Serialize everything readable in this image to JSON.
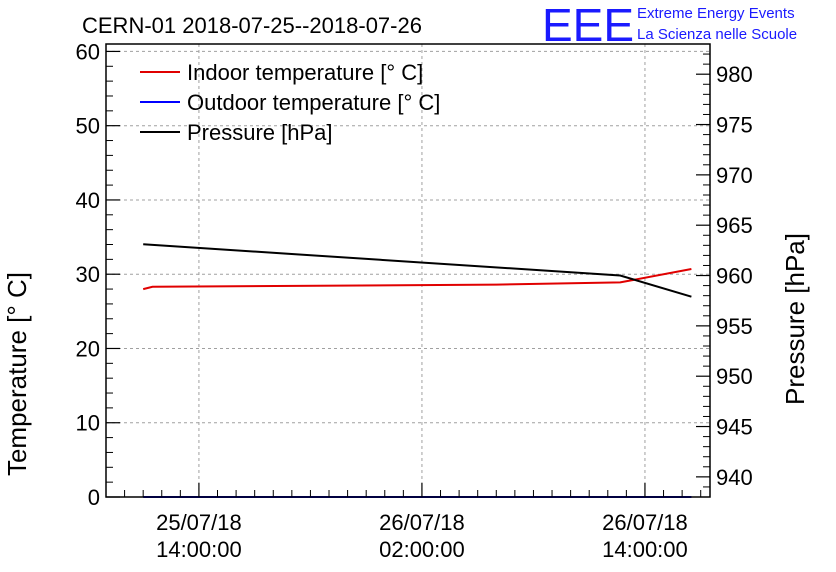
{
  "title": "CERN-01 2018-07-25--2018-07-26",
  "logo": {
    "mark": "EEE",
    "line1": "Extreme Energy Events",
    "line2": "La Scienza nelle Scuole",
    "color": "#1a1aff"
  },
  "chart_data": {
    "type": "line",
    "ylabel_left": "Temperature [° C]",
    "ylabel_right": "Pressure [hPa]",
    "ylim_left": [
      0,
      61
    ],
    "ylim_right": [
      938,
      983
    ],
    "y_ticks_left": [
      0,
      10,
      20,
      30,
      40,
      50,
      60
    ],
    "y_ticks_right": [
      940,
      945,
      950,
      955,
      960,
      965,
      970,
      975,
      980
    ],
    "xlim": [
      "2018-07-25 09:00",
      "2018-07-26 17:30"
    ],
    "x_ticks": [
      {
        "at": "2018-07-25 14:00",
        "line1": "25/07/18",
        "line2": "14:00:00"
      },
      {
        "at": "2018-07-26 02:00",
        "line1": "26/07/18",
        "line2": "02:00:00"
      },
      {
        "at": "2018-07-26 14:00",
        "line1": "26/07/18",
        "line2": "14:00:00"
      }
    ],
    "grid": true,
    "legend_position": "top-left",
    "series": [
      {
        "name": "Indoor temperature [° C]",
        "axis": "left",
        "color": "#e00000",
        "points": [
          {
            "x": "2018-07-25 11:00",
            "y": 28.0
          },
          {
            "x": "2018-07-25 11:30",
            "y": 28.3
          },
          {
            "x": "2018-07-26 06:00",
            "y": 28.6
          },
          {
            "x": "2018-07-26 12:40",
            "y": 28.9
          },
          {
            "x": "2018-07-26 16:30",
            "y": 30.7
          }
        ]
      },
      {
        "name": "Outdoor temperature [° C]",
        "axis": "left",
        "color": "#0000ff",
        "points": [
          {
            "x": "2018-07-25 11:00",
            "y": 0.0
          },
          {
            "x": "2018-07-26 16:30",
            "y": 0.0
          }
        ]
      },
      {
        "name": "Pressure [hPa]",
        "axis": "right",
        "color": "#000000",
        "points": [
          {
            "x": "2018-07-25 11:00",
            "y": 963.1
          },
          {
            "x": "2018-07-26 12:40",
            "y": 960.0
          },
          {
            "x": "2018-07-26 16:30",
            "y": 957.9
          }
        ]
      }
    ]
  }
}
